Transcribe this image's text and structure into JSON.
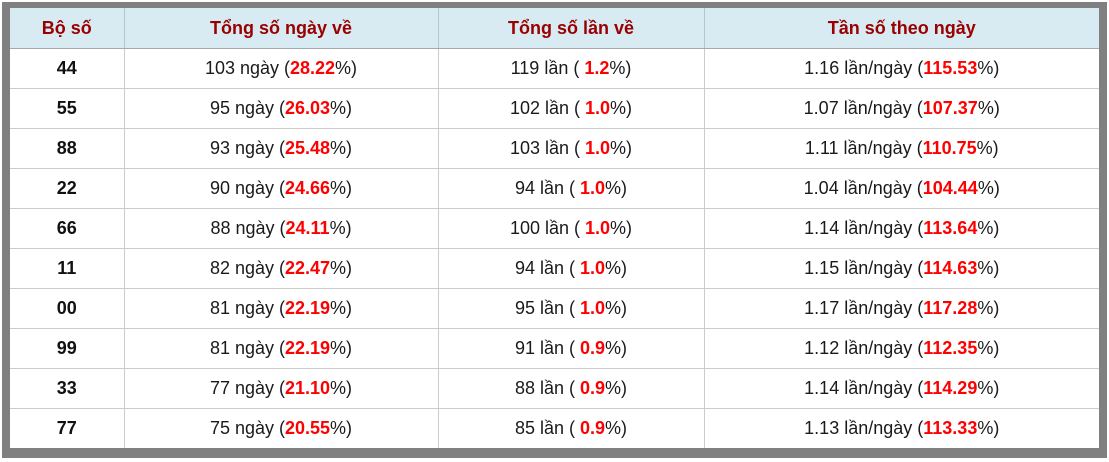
{
  "colors": {
    "frame_gray": "#808080",
    "header_bg": "#d8ebf3",
    "header_text": "#990000",
    "body_text": "#1a1a1a",
    "percent_red": "#ff0000",
    "cell_border": "#cccccc"
  },
  "table": {
    "headers": [
      "Bộ số",
      "Tổng số ngày về",
      "Tổng số lần về",
      "Tần số theo ngày"
    ],
    "pct_suffix": "%)",
    "rows": [
      {
        "pair": "44",
        "days_prefix": "103 ngày (",
        "days_pct": "28.22",
        "times_prefix": "119 lần ( ",
        "times_pct": "1.2",
        "freq_prefix": "1.16 lần/ngày (",
        "freq_pct": "115.53"
      },
      {
        "pair": "55",
        "days_prefix": "95 ngày (",
        "days_pct": "26.03",
        "times_prefix": "102 lần ( ",
        "times_pct": "1.0",
        "freq_prefix": "1.07 lần/ngày (",
        "freq_pct": "107.37"
      },
      {
        "pair": "88",
        "days_prefix": "93 ngày (",
        "days_pct": "25.48",
        "times_prefix": "103 lần ( ",
        "times_pct": "1.0",
        "freq_prefix": "1.11 lần/ngày (",
        "freq_pct": "110.75"
      },
      {
        "pair": "22",
        "days_prefix": "90 ngày (",
        "days_pct": "24.66",
        "times_prefix": "94 lần ( ",
        "times_pct": "1.0",
        "freq_prefix": "1.04 lần/ngày (",
        "freq_pct": "104.44"
      },
      {
        "pair": "66",
        "days_prefix": "88 ngày (",
        "days_pct": "24.11",
        "times_prefix": "100 lần ( ",
        "times_pct": "1.0",
        "freq_prefix": "1.14 lần/ngày (",
        "freq_pct": "113.64"
      },
      {
        "pair": "11",
        "days_prefix": "82 ngày (",
        "days_pct": "22.47",
        "times_prefix": "94 lần ( ",
        "times_pct": "1.0",
        "freq_prefix": "1.15 lần/ngày (",
        "freq_pct": "114.63"
      },
      {
        "pair": "00",
        "days_prefix": "81 ngày (",
        "days_pct": "22.19",
        "times_prefix": "95 lần ( ",
        "times_pct": "1.0",
        "freq_prefix": "1.17 lần/ngày (",
        "freq_pct": "117.28"
      },
      {
        "pair": "99",
        "days_prefix": "81 ngày (",
        "days_pct": "22.19",
        "times_prefix": "91 lần ( ",
        "times_pct": "0.9",
        "freq_prefix": "1.12 lần/ngày (",
        "freq_pct": "112.35"
      },
      {
        "pair": "33",
        "days_prefix": "77 ngày (",
        "days_pct": "21.10",
        "times_prefix": "88 lần ( ",
        "times_pct": "0.9",
        "freq_prefix": "1.14 lần/ngày (",
        "freq_pct": "114.29"
      },
      {
        "pair": "77",
        "days_prefix": "75 ngày (",
        "days_pct": "20.55",
        "times_prefix": "85 lần ( ",
        "times_pct": "0.9",
        "freq_prefix": "1.13 lần/ngày (",
        "freq_pct": "113.33"
      }
    ]
  }
}
